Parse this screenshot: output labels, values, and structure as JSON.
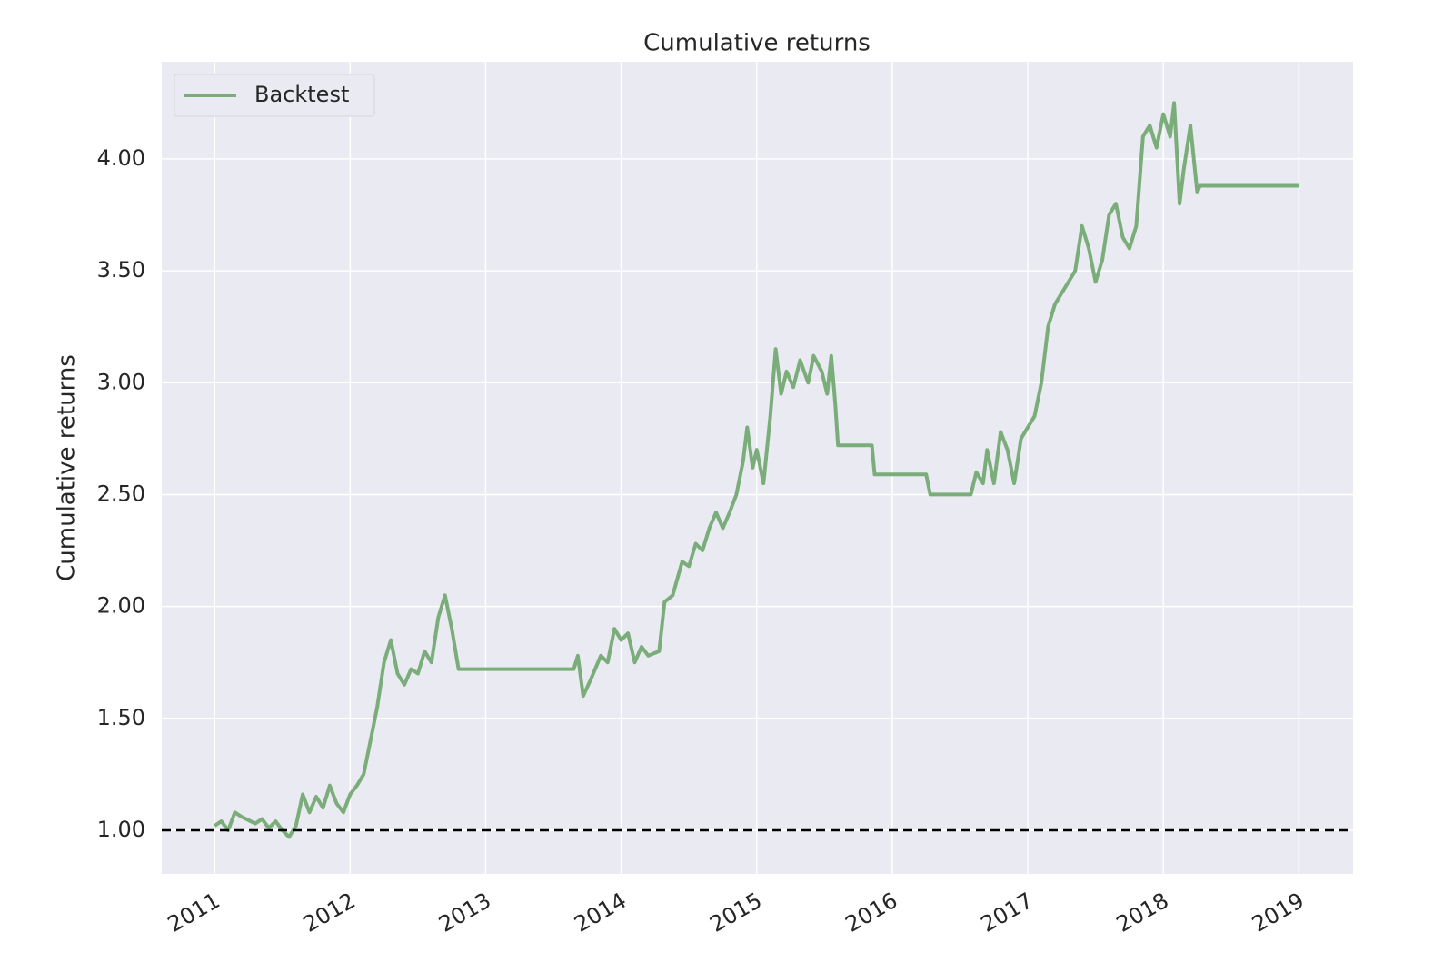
{
  "chart_data": {
    "type": "line",
    "title": "Cumulative returns",
    "ylabel": "Cumulative returns",
    "legend": "upper left",
    "grid": true,
    "baseline": 1,
    "xlim": [
      2010.61,
      2019.4
    ],
    "xticks": [
      2011,
      2012,
      2013,
      2014,
      2015,
      2016,
      2017,
      2018,
      2019
    ],
    "ylim": [
      0.805,
      4.434
    ],
    "yticks": [
      {
        "value": 1,
        "label": "1.00"
      },
      {
        "value": 1.5,
        "label": "1.50"
      },
      {
        "value": 2,
        "label": "2.00"
      },
      {
        "value": 2.5,
        "label": "2.50"
      },
      {
        "value": 3,
        "label": "3.00"
      },
      {
        "value": 3.5,
        "label": "3.50"
      },
      {
        "value": 4,
        "label": "4.00"
      }
    ],
    "x": [
      2011.0,
      2011.05,
      2011.1,
      2011.15,
      2011.2,
      2011.3,
      2011.35,
      2011.4,
      2011.45,
      2011.5,
      2011.55,
      2011.6,
      2011.65,
      2011.7,
      2011.75,
      2011.8,
      2011.85,
      2011.9,
      2011.95,
      2012.0,
      2012.05,
      2012.1,
      2012.15,
      2012.2,
      2012.25,
      2012.3,
      2012.35,
      2012.4,
      2012.45,
      2012.5,
      2012.55,
      2012.6,
      2012.65,
      2012.7,
      2012.75,
      2012.8,
      2013.65,
      2013.68,
      2013.72,
      2013.78,
      2013.85,
      2013.9,
      2013.95,
      2014.0,
      2014.05,
      2014.1,
      2014.15,
      2014.2,
      2014.28,
      2014.32,
      2014.38,
      2014.45,
      2014.5,
      2014.55,
      2014.6,
      2014.65,
      2014.7,
      2014.75,
      2014.8,
      2014.85,
      2014.9,
      2014.93,
      2014.97,
      2015.0,
      2015.05,
      2015.1,
      2015.14,
      2015.18,
      2015.22,
      2015.27,
      2015.32,
      2015.38,
      2015.42,
      2015.48,
      2015.52,
      2015.55,
      2015.58,
      2015.6,
      2015.85,
      2015.87,
      2016.25,
      2016.28,
      2016.58,
      2016.62,
      2016.67,
      2016.7,
      2016.75,
      2016.8,
      2016.85,
      2016.9,
      2016.95,
      2017.0,
      2017.05,
      2017.1,
      2017.15,
      2017.2,
      2017.25,
      2017.3,
      2017.35,
      2017.4,
      2017.45,
      2017.5,
      2017.55,
      2017.6,
      2017.65,
      2017.7,
      2017.75,
      2017.8,
      2017.85,
      2017.9,
      2017.95,
      2018.0,
      2018.05,
      2018.08,
      2018.12,
      2018.15,
      2018.2,
      2018.25,
      2018.27,
      2019.0
    ],
    "series": [
      {
        "name": "Backtest",
        "color": "#7aad7a",
        "values": [
          1.02,
          1.04,
          1.0,
          1.08,
          1.06,
          1.03,
          1.05,
          1.01,
          1.04,
          1.0,
          0.97,
          1.02,
          1.16,
          1.08,
          1.15,
          1.1,
          1.2,
          1.12,
          1.08,
          1.16,
          1.2,
          1.25,
          1.4,
          1.55,
          1.75,
          1.85,
          1.7,
          1.65,
          1.72,
          1.7,
          1.8,
          1.75,
          1.95,
          2.05,
          1.9,
          1.72,
          1.72,
          1.78,
          1.6,
          1.68,
          1.78,
          1.75,
          1.9,
          1.85,
          1.88,
          1.75,
          1.82,
          1.78,
          1.8,
          2.02,
          2.05,
          2.2,
          2.18,
          2.28,
          2.25,
          2.35,
          2.42,
          2.35,
          2.42,
          2.5,
          2.65,
          2.8,
          2.62,
          2.7,
          2.55,
          2.85,
          3.15,
          2.95,
          3.05,
          2.98,
          3.1,
          3.0,
          3.12,
          3.05,
          2.95,
          3.12,
          2.9,
          2.72,
          2.72,
          2.59,
          2.59,
          2.5,
          2.5,
          2.6,
          2.55,
          2.7,
          2.55,
          2.78,
          2.7,
          2.55,
          2.75,
          2.8,
          2.85,
          3.0,
          3.25,
          3.35,
          3.4,
          3.45,
          3.5,
          3.7,
          3.6,
          3.45,
          3.55,
          3.75,
          3.8,
          3.65,
          3.6,
          3.7,
          4.1,
          4.15,
          4.05,
          4.2,
          4.1,
          4.25,
          3.8,
          3.95,
          4.15,
          3.85,
          3.88,
          3.88
        ]
      }
    ]
  }
}
